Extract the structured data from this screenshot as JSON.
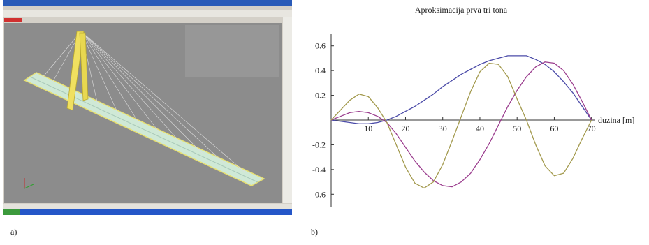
{
  "panel_labels": [
    "a)",
    "b)"
  ],
  "chart_data": {
    "type": "line",
    "title": "Aproksimacija prva tri tona",
    "x_label": "duzina [m]",
    "x": [
      0,
      2.5,
      5,
      7.5,
      10,
      12.5,
      15,
      17.5,
      20,
      22.5,
      25,
      27.5,
      30,
      32.5,
      35,
      37.5,
      40,
      42.5,
      45,
      47.5,
      50,
      52.5,
      55,
      57.5,
      60,
      62.5,
      65,
      67.5,
      70
    ],
    "series": [
      {
        "color": "#4b4ba8",
        "values": [
          0,
          -0.01,
          -0.02,
          -0.03,
          -0.03,
          -0.02,
          0,
          0.03,
          0.07,
          0.11,
          0.16,
          0.21,
          0.27,
          0.32,
          0.37,
          0.41,
          0.45,
          0.48,
          0.5,
          0.52,
          0.52,
          0.52,
          0.49,
          0.45,
          0.39,
          0.31,
          0.22,
          0.11,
          0
        ]
      },
      {
        "color": "#9b3d8e",
        "values": [
          0,
          0.03,
          0.06,
          0.07,
          0.06,
          0.03,
          -0.02,
          -0.11,
          -0.22,
          -0.33,
          -0.42,
          -0.49,
          -0.53,
          -0.54,
          -0.5,
          -0.43,
          -0.32,
          -0.19,
          -0.04,
          0.11,
          0.24,
          0.35,
          0.43,
          0.47,
          0.46,
          0.4,
          0.29,
          0.15,
          0
        ]
      },
      {
        "color": "#a39a4e",
        "values": [
          0,
          0.08,
          0.16,
          0.21,
          0.19,
          0.1,
          -0.02,
          -0.2,
          -0.38,
          -0.51,
          -0.55,
          -0.5,
          -0.36,
          -0.17,
          0.03,
          0.23,
          0.39,
          0.46,
          0.45,
          0.35,
          0.17,
          0,
          -0.2,
          -0.37,
          -0.45,
          -0.43,
          -0.31,
          -0.15,
          0
        ]
      }
    ],
    "xlim": [
      0,
      71
    ],
    "ylim": [
      -0.7,
      0.7
    ],
    "xticks": [
      10,
      20,
      30,
      40,
      50,
      60,
      70
    ],
    "yticks": [
      -0.6,
      -0.4,
      -0.2,
      0.2,
      0.4,
      0.6
    ]
  }
}
